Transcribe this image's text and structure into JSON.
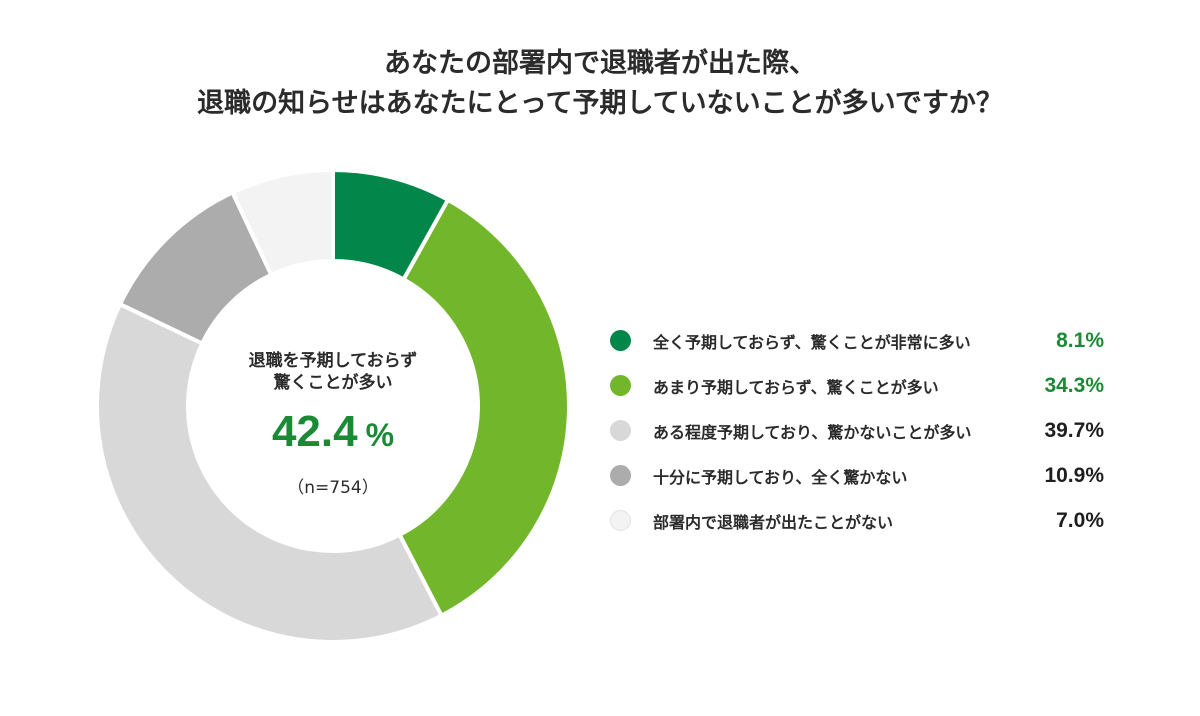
{
  "title": {
    "line1": "あなたの部署内で退職者が出た際、",
    "line2": "退職の知らせはあなたにとって予期していないことが多いですか？"
  },
  "center": {
    "label_line1": "退職を予期しておらず",
    "label_line2": "驚くことが多い",
    "value": "42.4",
    "unit": "%",
    "sample": "（n=754）"
  },
  "legend": [
    {
      "label": "全く予期しておらず、驚くことが非常に多い",
      "value": "8.1%",
      "color": "#03864a",
      "highlight": true
    },
    {
      "label": "あまり予期しておらず、驚くことが多い",
      "value": "34.3%",
      "color": "#72b62c",
      "highlight": true
    },
    {
      "label": "ある程度予期しており、驚かないことが多い",
      "value": "39.7%",
      "color": "#d8d8d8",
      "highlight": false
    },
    {
      "label": "十分に予期しており、全く驚かない",
      "value": "10.9%",
      "color": "#acacac",
      "highlight": false
    },
    {
      "label": "部署内で退職者が出たことがない",
      "value": "7.0%",
      "color": "#f3f3f3",
      "highlight": false
    }
  ],
  "chart_data": {
    "type": "pie",
    "subtype": "donut",
    "title": "あなたの部署内で退職者が出た際、退職の知らせはあなたにとって予期していないことが多いですか？",
    "categories": [
      "全く予期しておらず、驚くことが非常に多い",
      "あまり予期しておらず、驚くことが多い",
      "ある程度予期しており、驚かないことが多い",
      "十分に予期しており、全く驚かない",
      "部署内で退職者が出たことがない"
    ],
    "values": [
      8.1,
      34.3,
      39.7,
      10.9,
      7.0
    ],
    "colors": [
      "#03864a",
      "#72b62c",
      "#d8d8d8",
      "#acacac",
      "#f3f3f3"
    ],
    "center_annotation": "退職を予期しておらず驚くことが多い 42.4 %",
    "sample_size": "n=754",
    "legend_position": "right"
  }
}
